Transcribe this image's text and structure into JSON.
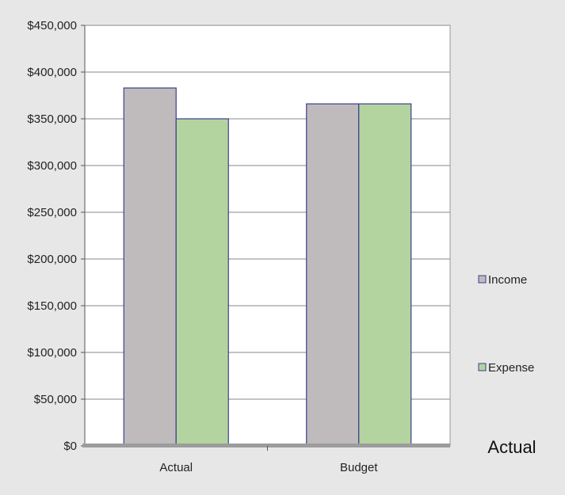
{
  "chart_data": {
    "type": "bar",
    "categories": [
      "Actual",
      "Budget"
    ],
    "series": [
      {
        "name": "Income",
        "values": [
          383000,
          366000
        ]
      },
      {
        "name": "Expense",
        "values": [
          350000,
          366000
        ]
      }
    ],
    "ylim": [
      0,
      450000
    ],
    "yticks": [
      0,
      50000,
      100000,
      150000,
      200000,
      250000,
      300000,
      350000,
      400000,
      450000
    ],
    "ytick_labels": [
      "$0",
      "$50,000",
      "$100,000",
      "$150,000",
      "$200,000",
      "$250,000",
      "$300,000",
      "$350,000",
      "$400,000",
      "$450,000"
    ],
    "grid": true,
    "legend_position": "right",
    "caption": "Actual"
  },
  "colors": {
    "income": "#bfbbbc",
    "expense": "#b4d49f",
    "bar_outline": "#3a3f8f",
    "background": "#e7e7e7",
    "plot_area": "#ffffff",
    "grid": "#8a8a8a"
  }
}
